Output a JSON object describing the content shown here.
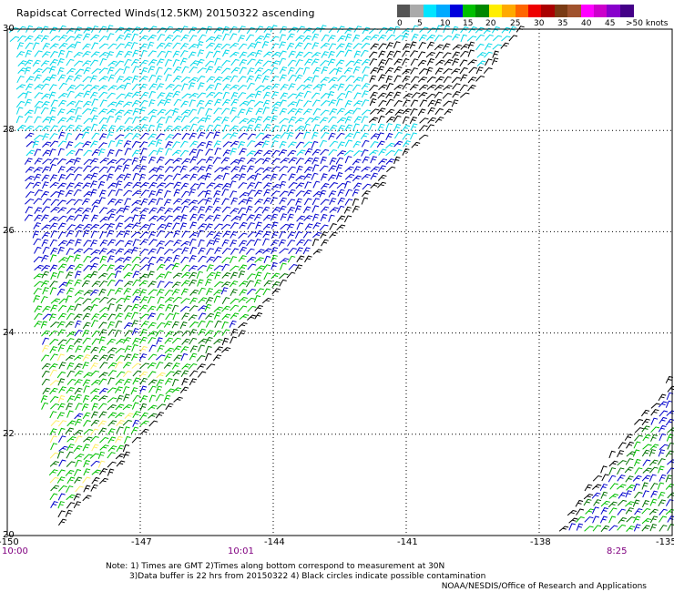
{
  "title": "Rapidscat Corrected Winds(12.5KM) 20150322 ascending",
  "legend": {
    "labels": [
      "0",
      "5",
      "10",
      "15",
      "20",
      "25",
      "30",
      "35",
      "40",
      ">50 knots"
    ],
    "extra_label": "45",
    "colors": [
      "#555555",
      "#aaaaaa",
      "#00e5ff",
      "#00aaff",
      "#0000dd",
      "#00c000",
      "#008800",
      "#ffee00",
      "#ffaa00",
      "#ff6600",
      "#ee0000",
      "#aa0000",
      "#7a3b14",
      "#a0522d",
      "#ff00ff",
      "#cc00cc",
      "#8800cc",
      "#440088"
    ]
  },
  "axes": {
    "lon_ticks": [
      "-150",
      "-147",
      "-144",
      "-141",
      "-138",
      "-135"
    ],
    "lat_ticks": [
      "30",
      "28",
      "26",
      "24",
      "22",
      "20"
    ]
  },
  "times": [
    "10:00",
    "10:01",
    "8:25"
  ],
  "notes": [
    "Note: 1) Times are GMT 2)Times along bottom correspond to measurement at 30N",
    "3)Data buffer is 22 hrs from 20150322 4) Black circles indicate possible contamination"
  ],
  "credit": "NOAA/NESDIS/Office of Research and Applications",
  "palette": {
    "black": "#000000",
    "cyan": "#00d8e8",
    "blue": "#0000cc",
    "green": "#00c000",
    "darkgreen": "#007000",
    "yellow": "#ffee66"
  }
}
